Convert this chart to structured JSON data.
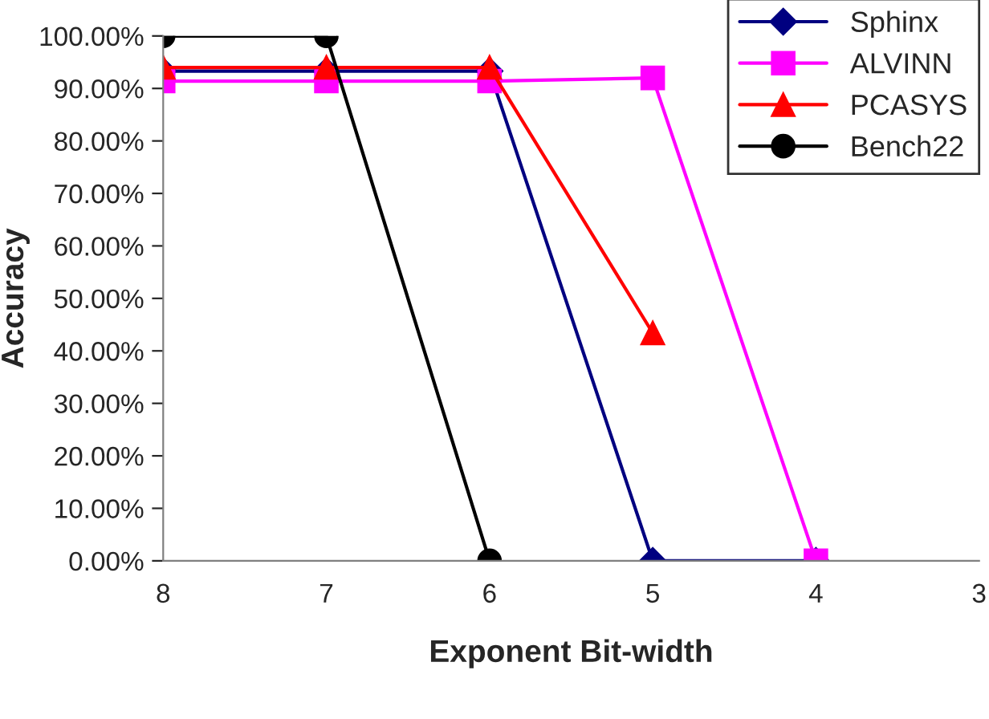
{
  "chart_data": {
    "type": "line",
    "xlabel": "Exponent Bit-width",
    "ylabel": "Accuracy",
    "x": [
      8,
      7,
      6,
      5,
      4
    ],
    "series": [
      {
        "name": "Sphinx",
        "color": "#000080",
        "marker": "diamond",
        "values": [
          93.3,
          93.3,
          93.3,
          0,
          0
        ]
      },
      {
        "name": "ALVINN",
        "color": "#ff00ff",
        "marker": "square",
        "values": [
          91.4,
          91.4,
          91.4,
          92,
          0
        ]
      },
      {
        "name": "PCASYS",
        "color": "#ff0000",
        "marker": "triangle",
        "values": [
          94,
          94,
          94,
          43.4,
          null
        ]
      },
      {
        "name": "Bench22",
        "color": "#000000",
        "marker": "circle",
        "values": [
          100,
          100,
          0,
          null,
          null
        ]
      }
    ],
    "xlim": [
      8,
      3
    ],
    "xticks": [
      8,
      7,
      6,
      5,
      4,
      3
    ],
    "ylim": [
      0,
      100
    ],
    "yticks": [
      {
        "value": 0,
        "label": "0.00%"
      },
      {
        "value": 10,
        "label": "10.00%"
      },
      {
        "value": 20,
        "label": "20.00%"
      },
      {
        "value": 30,
        "label": "30.00%"
      },
      {
        "value": 40,
        "label": "40.00%"
      },
      {
        "value": 50,
        "label": "50.00%"
      },
      {
        "value": 60,
        "label": "60.00%"
      },
      {
        "value": 70,
        "label": "70.00%"
      },
      {
        "value": 80,
        "label": "80.00%"
      },
      {
        "value": 90,
        "label": "90.00%"
      },
      {
        "value": 100,
        "label": "100.00%"
      }
    ],
    "grid": false,
    "legend": "top right",
    "line_style": "solid"
  }
}
